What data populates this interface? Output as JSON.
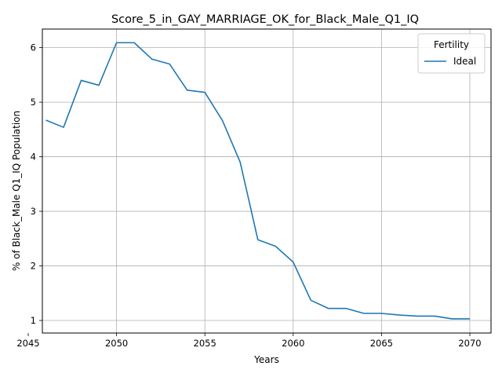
{
  "chart_data": {
    "type": "line",
    "title": "Score_5_in_GAY_MARRIAGE_OK_for_Black_Male_Q1_IQ",
    "xlabel": "Years",
    "ylabel": "% of Black_Male Q1_IQ Population",
    "xlim": [
      2045.8,
      2071.2
    ],
    "ylim": [
      0.77,
      6.34
    ],
    "xticks": [
      2045,
      2050,
      2055,
      2060,
      2065,
      2070
    ],
    "yticks": [
      1,
      2,
      3,
      4,
      5,
      6
    ],
    "grid": true,
    "legend": {
      "title": "Fertility",
      "position": "top-right"
    },
    "x": [
      2046,
      2047,
      2048,
      2049,
      2050,
      2051,
      2052,
      2053,
      2054,
      2055,
      2056,
      2057,
      2058,
      2059,
      2060,
      2061,
      2062,
      2063,
      2064,
      2065,
      2066,
      2067,
      2068,
      2069,
      2070
    ],
    "series": [
      {
        "name": "Ideal",
        "color": "#1f77b4",
        "values": [
          4.67,
          4.54,
          5.4,
          5.31,
          6.09,
          6.09,
          5.79,
          5.7,
          5.22,
          5.18,
          4.66,
          3.9,
          2.48,
          2.36,
          2.07,
          1.37,
          1.22,
          1.22,
          1.13,
          1.13,
          1.1,
          1.08,
          1.08,
          1.03,
          1.03
        ]
      }
    ]
  }
}
